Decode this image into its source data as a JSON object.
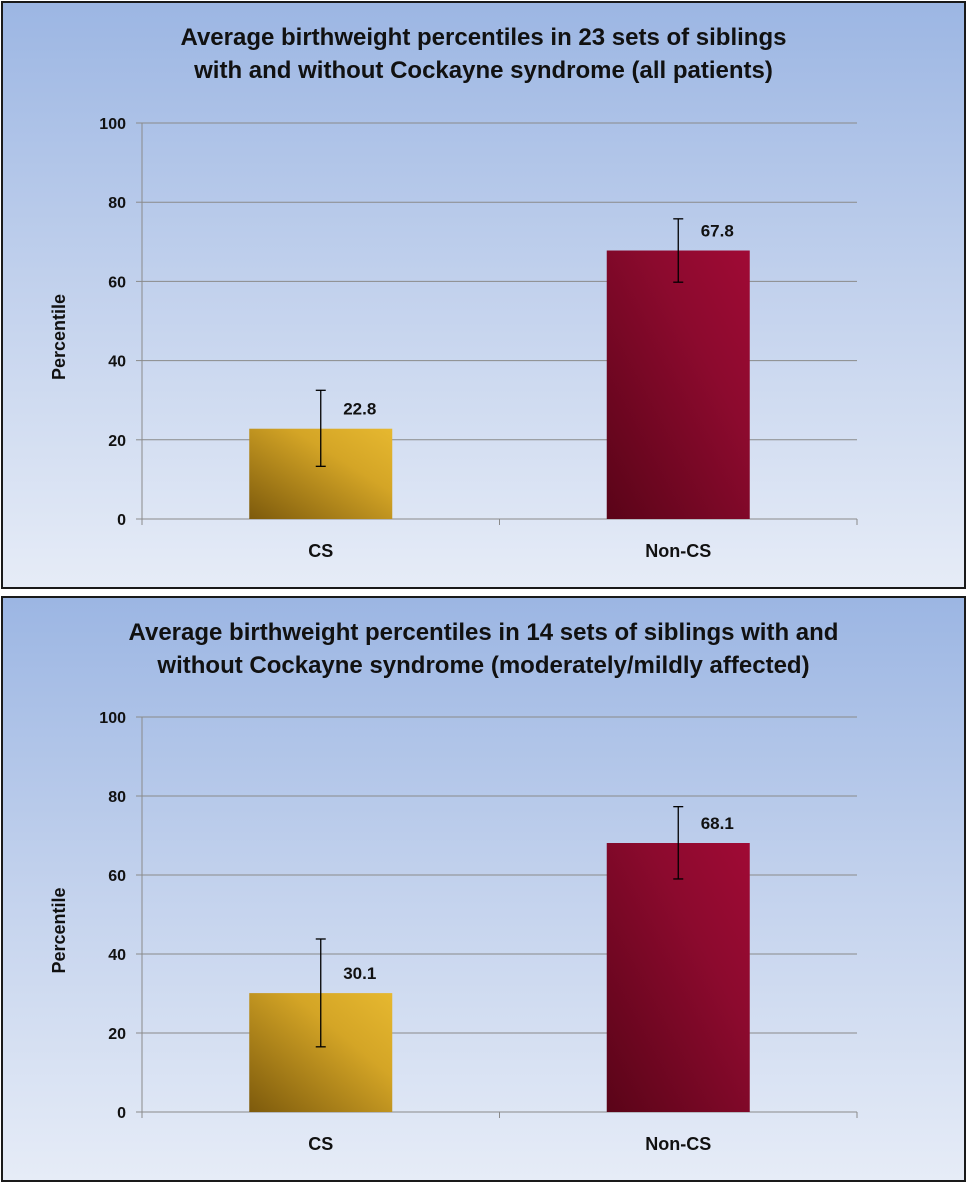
{
  "chart_data": [
    {
      "type": "bar",
      "title": "Average birthweight percentiles in 23 sets of siblings\nwith and without Cockayne syndrome (all patients)",
      "xlabel": "",
      "ylabel": "Percentile",
      "ylim": [
        0,
        100
      ],
      "yticks": [
        0,
        20,
        40,
        60,
        80,
        100
      ],
      "categories": [
        "CS",
        "Non-CS"
      ],
      "values": [
        22.8,
        67.8
      ],
      "data_labels": [
        "22.8",
        "67.8"
      ],
      "error_bars": [
        [
          13.3,
          32.5
        ],
        [
          59.8,
          75.8
        ]
      ],
      "bar_colors": [
        "#d4a526",
        "#8c0a2e"
      ],
      "grid": true,
      "legend": "none"
    },
    {
      "type": "bar",
      "title": "Average birthweight percentiles in 14 sets of siblings with and\nwithout Cockayne syndrome (moderately/mildly affected)",
      "xlabel": "",
      "ylabel": "Percentile",
      "ylim": [
        0,
        100
      ],
      "yticks": [
        0,
        20,
        40,
        60,
        80,
        100
      ],
      "categories": [
        "CS",
        "Non-CS"
      ],
      "values": [
        30.1,
        68.1
      ],
      "data_labels": [
        "30.1",
        "68.1"
      ],
      "error_bars": [
        [
          16.5,
          43.8
        ],
        [
          59.0,
          77.3
        ]
      ],
      "bar_colors": [
        "#d4a526",
        "#8c0a2e"
      ],
      "grid": true,
      "legend": "none"
    }
  ]
}
